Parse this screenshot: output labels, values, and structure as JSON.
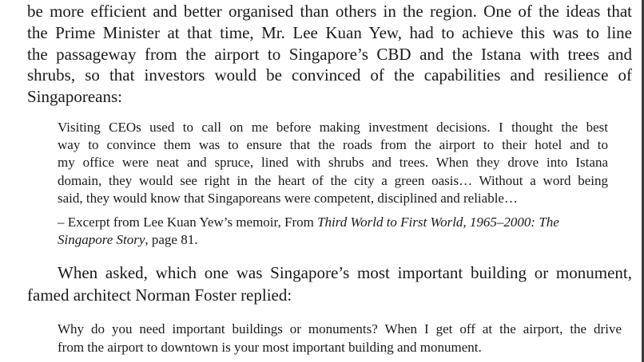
{
  "paragraph1": {
    "lines": [
      "be more efficient and better organised than others in the region. One of the ideas that",
      "the Prime Minister at that time, Mr. Lee Kuan Yew, had to achieve this was to line",
      "the passageway from the airport to Singapore’s CBD and the Istana with trees and",
      "shrubs, so that investors would be convinced of the capabilities and resilience of",
      "Singaporeans:"
    ]
  },
  "quote1": {
    "lines": [
      "Visiting CEOs used to call on me before making investment decisions. I thought the best",
      "way to convince them was to ensure that the roads from the airport to their hotel and to",
      "my office were neat and spruce, lined with shrubs and trees. When they drove into Istana",
      "domain, they would see right in the heart of the city a green oasis… Without a word being",
      "said, they would know that Singaporeans were competent, disciplined and reliable…"
    ],
    "citation": {
      "prefix": "– Excerpt from Lee Kuan Yew’s memoir, From ",
      "title_part1": "Third World to First World, 1965–2000: The",
      "title_part2": "Singapore Story",
      "suffix": ", page 81."
    }
  },
  "paragraph2": {
    "lines": [
      "When asked, which one was Singapore’s most important building or monument,",
      "famed architect Norman Foster replied:"
    ]
  },
  "quote2": {
    "lines": [
      "Why do you need important buildings or monuments? When I get off at the airport, the drive",
      "from the airport to downtown is your most important building and monument."
    ]
  }
}
